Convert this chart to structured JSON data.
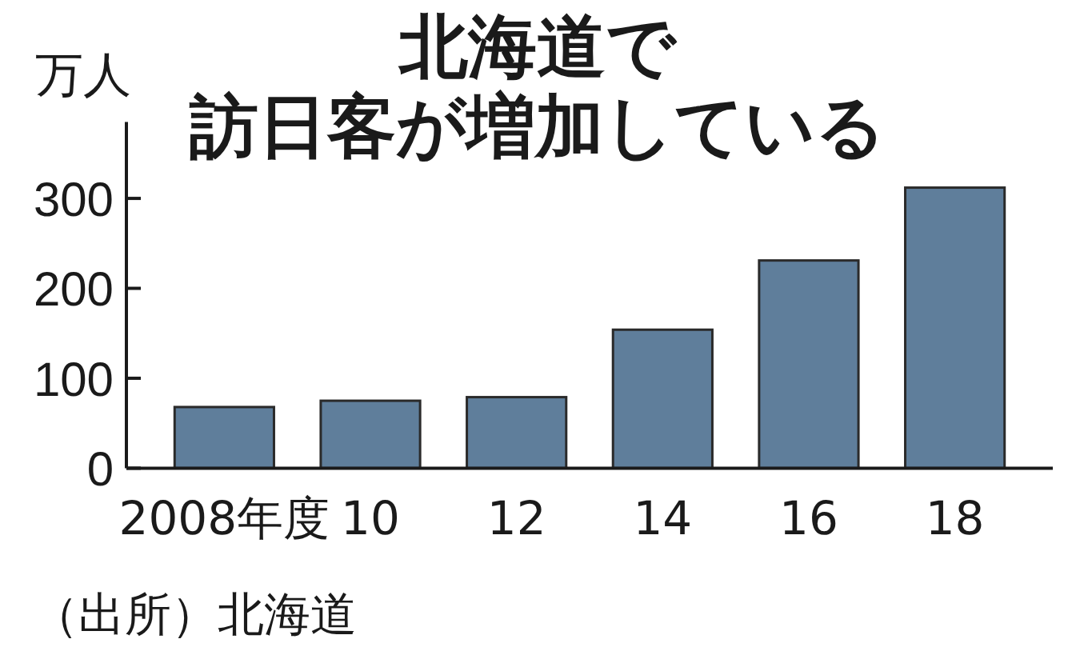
{
  "chart_data": {
    "type": "bar",
    "title": "北海道で訪日客が増加している",
    "ylabel": "万人",
    "categories": [
      "2008年度",
      "10",
      "12",
      "14",
      "16",
      "18"
    ],
    "values": [
      68,
      75,
      79,
      154,
      231,
      312
    ],
    "color": "#5f7e9b",
    "ylim": [
      0,
      385
    ],
    "yticks": [
      0,
      100,
      200,
      300
    ],
    "annotations": [
      "（出所）北海道"
    ]
  }
}
